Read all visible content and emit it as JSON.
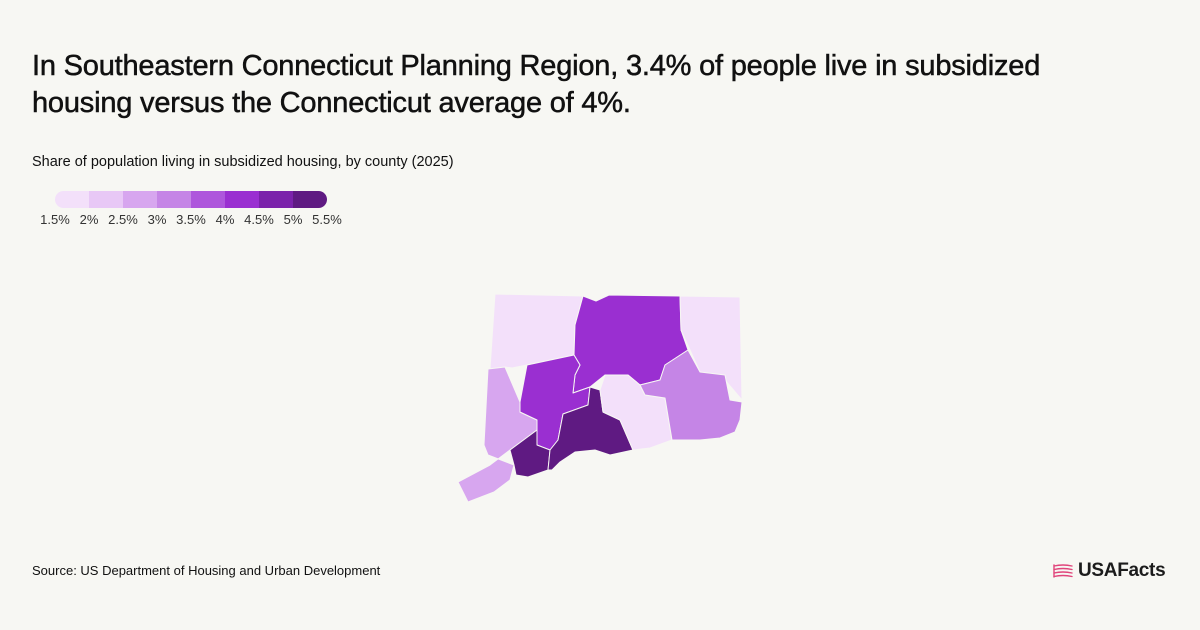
{
  "headline": "In Southeastern Connecticut Planning Region, 3.4% of people live in subsidized housing versus the Connecticut average of 4%.",
  "subtitle": "Share of population living in subsidized housing, by county (2025)",
  "legend": {
    "ticks": [
      "1.5%",
      "2%",
      "2.5%",
      "3%",
      "3.5%",
      "4%",
      "4.5%",
      "5%",
      "5.5%"
    ],
    "colors": [
      "#f3e0fa",
      "#e8c8f6",
      "#d7a6ef",
      "#c585e6",
      "#ae56dc",
      "#9a2fd1",
      "#7b22ab",
      "#5f1a82"
    ]
  },
  "map": {
    "regions": [
      {
        "id": "northwest-hills",
        "color": "#f3e0fa"
      },
      {
        "id": "capitol",
        "color": "#9a2fd1"
      },
      {
        "id": "northeastern",
        "color": "#f3e0fa"
      },
      {
        "id": "western",
        "color": "#d7a6ef"
      },
      {
        "id": "naugatuck-valley",
        "color": "#9a2fd1"
      },
      {
        "id": "greater-bridgeport",
        "color": "#5f1a82"
      },
      {
        "id": "south-central",
        "color": "#5f1a82"
      },
      {
        "id": "lower-connecticut-river-valley",
        "color": "#f3e0fa"
      },
      {
        "id": "southeastern",
        "color": "#c585e6"
      }
    ]
  },
  "source": "Source: US Department of Housing and Urban Development",
  "logo": {
    "text": "USAFacts",
    "icon_color": "#e0457b"
  }
}
